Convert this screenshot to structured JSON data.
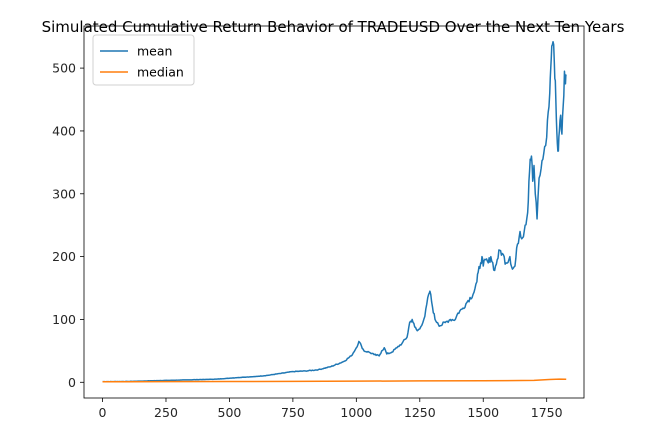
{
  "chart_data": {
    "type": "line",
    "title": "Simulated Cumulative Return Behavior of TRADEUSD Over the Next Ten Years",
    "xlabel": "",
    "ylabel": "",
    "xlim": [
      -73,
      1897
    ],
    "ylim": [
      -25,
      567
    ],
    "xticks": [
      0,
      250,
      500,
      750,
      1000,
      1250,
      1500,
      1750
    ],
    "yticks": [
      0,
      100,
      200,
      300,
      400,
      500
    ],
    "grid": false,
    "legend_position": "upper-left",
    "series": [
      {
        "name": "mean",
        "color": "#1f77b4",
        "points": [
          [
            0,
            1
          ],
          [
            100,
            1.3
          ],
          [
            200,
            2.5
          ],
          [
            300,
            3.5
          ],
          [
            400,
            4.5
          ],
          [
            450,
            5
          ],
          [
            500,
            6.5
          ],
          [
            550,
            8
          ],
          [
            600,
            9
          ],
          [
            650,
            11
          ],
          [
            700,
            14
          ],
          [
            750,
            17
          ],
          [
            800,
            18
          ],
          [
            850,
            20
          ],
          [
            900,
            25
          ],
          [
            950,
            33
          ],
          [
            980,
            42
          ],
          [
            1000,
            55
          ],
          [
            1010,
            65
          ],
          [
            1020,
            58
          ],
          [
            1030,
            50
          ],
          [
            1050,
            48
          ],
          [
            1070,
            44
          ],
          [
            1090,
            42
          ],
          [
            1100,
            50
          ],
          [
            1110,
            55
          ],
          [
            1120,
            45
          ],
          [
            1140,
            48
          ],
          [
            1160,
            55
          ],
          [
            1180,
            62
          ],
          [
            1200,
            72
          ],
          [
            1210,
            95
          ],
          [
            1220,
            100
          ],
          [
            1230,
            88
          ],
          [
            1240,
            82
          ],
          [
            1250,
            85
          ],
          [
            1270,
            105
          ],
          [
            1285,
            140
          ],
          [
            1290,
            145
          ],
          [
            1300,
            120
          ],
          [
            1310,
            100
          ],
          [
            1320,
            95
          ],
          [
            1330,
            90
          ],
          [
            1350,
            95
          ],
          [
            1370,
            100
          ],
          [
            1390,
            100
          ],
          [
            1400,
            110
          ],
          [
            1420,
            118
          ],
          [
            1440,
            130
          ],
          [
            1460,
            140
          ],
          [
            1475,
            160
          ],
          [
            1480,
            175
          ],
          [
            1490,
            190
          ],
          [
            1495,
            200
          ],
          [
            1500,
            185
          ],
          [
            1510,
            195
          ],
          [
            1520,
            190
          ],
          [
            1530,
            200
          ],
          [
            1545,
            178
          ],
          [
            1555,
            195
          ],
          [
            1565,
            210
          ],
          [
            1575,
            205
          ],
          [
            1590,
            190
          ],
          [
            1605,
            200
          ],
          [
            1615,
            180
          ],
          [
            1625,
            185
          ],
          [
            1635,
            220
          ],
          [
            1645,
            240
          ],
          [
            1655,
            230
          ],
          [
            1665,
            250
          ],
          [
            1675,
            270
          ],
          [
            1680,
            320
          ],
          [
            1685,
            355
          ],
          [
            1690,
            360
          ],
          [
            1695,
            320
          ],
          [
            1700,
            345
          ],
          [
            1705,
            300
          ],
          [
            1712,
            260
          ],
          [
            1720,
            325
          ],
          [
            1728,
            340
          ],
          [
            1735,
            355
          ],
          [
            1742,
            375
          ],
          [
            1750,
            390
          ],
          [
            1756,
            430
          ],
          [
            1762,
            460
          ],
          [
            1766,
            500
          ],
          [
            1770,
            535
          ],
          [
            1775,
            542
          ],
          [
            1780,
            510
          ],
          [
            1784,
            480
          ],
          [
            1788,
            420
          ],
          [
            1792,
            380
          ],
          [
            1796,
            368
          ],
          [
            1800,
            400
          ],
          [
            1805,
            425
          ],
          [
            1810,
            395
          ],
          [
            1815,
            440
          ],
          [
            1820,
            495
          ],
          [
            1824,
            475
          ],
          [
            1827,
            488
          ]
        ]
      },
      {
        "name": "median",
        "color": "#ff7f0e",
        "points": [
          [
            0,
            0.8
          ],
          [
            250,
            1
          ],
          [
            500,
            1.2
          ],
          [
            750,
            1.5
          ],
          [
            1000,
            1.8
          ],
          [
            1250,
            2.2
          ],
          [
            1500,
            2.5
          ],
          [
            1700,
            3
          ],
          [
            1760,
            4.5
          ],
          [
            1800,
            5
          ],
          [
            1827,
            4.8
          ]
        ]
      }
    ]
  }
}
